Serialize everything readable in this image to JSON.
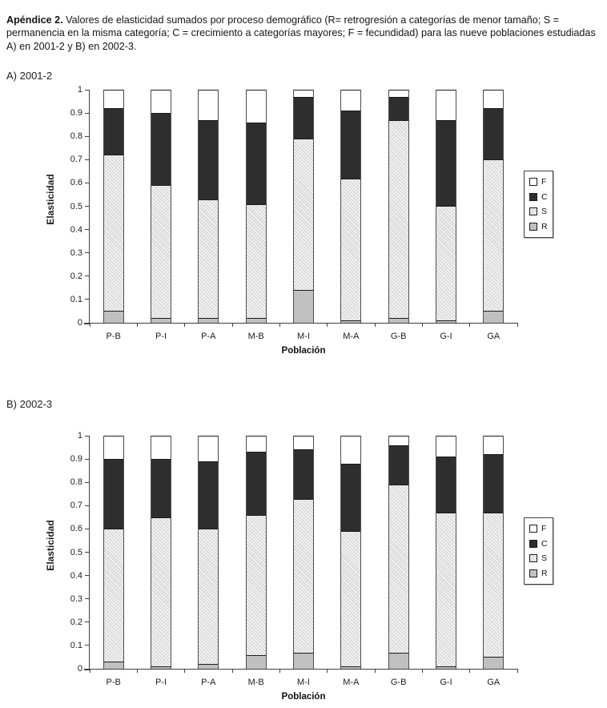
{
  "caption": {
    "title": "Apéndice 2.",
    "text": " Valores de elasticidad sumados por proceso demográfico (R= retrogresión a categorías de menor tamaño; S = permanencia en la misma categoría; C = crecimiento a categorías mayores; F = fecundidad) para las nueve poblaciones estudiadas A) en 2001-2 y B) en 2002-3."
  },
  "colors": {
    "F": "#ffffff",
    "C": "#2e2e2e",
    "S": "#d9d9d9",
    "R": "#c0c0c0",
    "axis": "#404040"
  },
  "chart_data": [
    {
      "type": "bar",
      "stacked": true,
      "title": "A) 2001-2",
      "categories": [
        "P-B",
        "P-I",
        "P-A",
        "M-B",
        "M-I",
        "M-A",
        "G-B",
        "G-I",
        "GA"
      ],
      "series": [
        {
          "name": "R",
          "color": "#c0c0c0",
          "pattern": "solid",
          "values": [
            0.05,
            0.02,
            0.02,
            0.02,
            0.14,
            0.01,
            0.02,
            0.01,
            0.05
          ]
        },
        {
          "name": "S",
          "color": "#d9d9d9",
          "pattern": "hatch",
          "values": [
            0.67,
            0.57,
            0.51,
            0.49,
            0.65,
            0.61,
            0.85,
            0.49,
            0.65
          ]
        },
        {
          "name": "C",
          "color": "#2e2e2e",
          "pattern": "solid",
          "values": [
            0.2,
            0.31,
            0.34,
            0.35,
            0.18,
            0.29,
            0.1,
            0.37,
            0.22
          ]
        },
        {
          "name": "F",
          "color": "#ffffff",
          "pattern": "solid",
          "values": [
            0.08,
            0.1,
            0.13,
            0.14,
            0.03,
            0.09,
            0.03,
            0.13,
            0.08
          ]
        }
      ],
      "cumulative_tops": {
        "R": [
          0.05,
          0.02,
          0.02,
          0.02,
          0.14,
          0.01,
          0.02,
          0.01,
          0.05
        ],
        "S": [
          0.72,
          0.59,
          0.53,
          0.51,
          0.79,
          0.62,
          0.87,
          0.5,
          0.7
        ],
        "C": [
          0.92,
          0.9,
          0.87,
          0.86,
          0.97,
          0.91,
          0.97,
          0.87,
          0.92
        ],
        "F": [
          1.0,
          1.0,
          1.0,
          1.0,
          1.0,
          1.0,
          1.0,
          1.0,
          1.0
        ]
      },
      "xlabel": "Población",
      "ylabel": "Elasticidad",
      "ylim": [
        0,
        1
      ],
      "yticks": [
        1,
        0.9,
        0.8,
        0.7,
        0.6,
        0.5,
        0.4,
        0.3,
        0.2,
        0.1,
        0
      ],
      "grid": false,
      "legend": [
        "F",
        "C",
        "S",
        "R"
      ],
      "legend_position": "right"
    },
    {
      "type": "bar",
      "stacked": true,
      "title": "B) 2002-3",
      "categories": [
        "P-B",
        "P-I",
        "P-A",
        "M-B",
        "M-I",
        "M-A",
        "G-B",
        "G-I",
        "GA"
      ],
      "series": [
        {
          "name": "R",
          "color": "#c0c0c0",
          "pattern": "solid",
          "values": [
            0.03,
            0.01,
            0.02,
            0.06,
            0.07,
            0.01,
            0.07,
            0.01,
            0.05
          ]
        },
        {
          "name": "S",
          "color": "#d9d9d9",
          "pattern": "hatch",
          "values": [
            0.57,
            0.64,
            0.58,
            0.6,
            0.66,
            0.58,
            0.72,
            0.66,
            0.62
          ]
        },
        {
          "name": "C",
          "color": "#2e2e2e",
          "pattern": "solid",
          "values": [
            0.3,
            0.25,
            0.29,
            0.27,
            0.21,
            0.29,
            0.17,
            0.24,
            0.25
          ]
        },
        {
          "name": "F",
          "color": "#ffffff",
          "pattern": "solid",
          "values": [
            0.1,
            0.1,
            0.11,
            0.07,
            0.06,
            0.12,
            0.04,
            0.09,
            0.08
          ]
        }
      ],
      "cumulative_tops": {
        "R": [
          0.03,
          0.01,
          0.02,
          0.06,
          0.07,
          0.01,
          0.07,
          0.01,
          0.05
        ],
        "S": [
          0.6,
          0.65,
          0.6,
          0.66,
          0.73,
          0.59,
          0.79,
          0.67,
          0.67
        ],
        "C": [
          0.9,
          0.9,
          0.89,
          0.93,
          0.94,
          0.88,
          0.96,
          0.91,
          0.92
        ],
        "F": [
          1.0,
          1.0,
          1.0,
          1.0,
          1.0,
          1.0,
          1.0,
          1.0,
          1.0
        ]
      },
      "xlabel": "Población",
      "ylabel": "Elasticidad",
      "ylim": [
        0,
        1
      ],
      "yticks": [
        1,
        0.9,
        0.8,
        0.7,
        0.6,
        0.5,
        0.4,
        0.3,
        0.2,
        0.1,
        0
      ],
      "grid": false,
      "legend": [
        "F",
        "C",
        "S",
        "R"
      ],
      "legend_position": "right"
    }
  ]
}
